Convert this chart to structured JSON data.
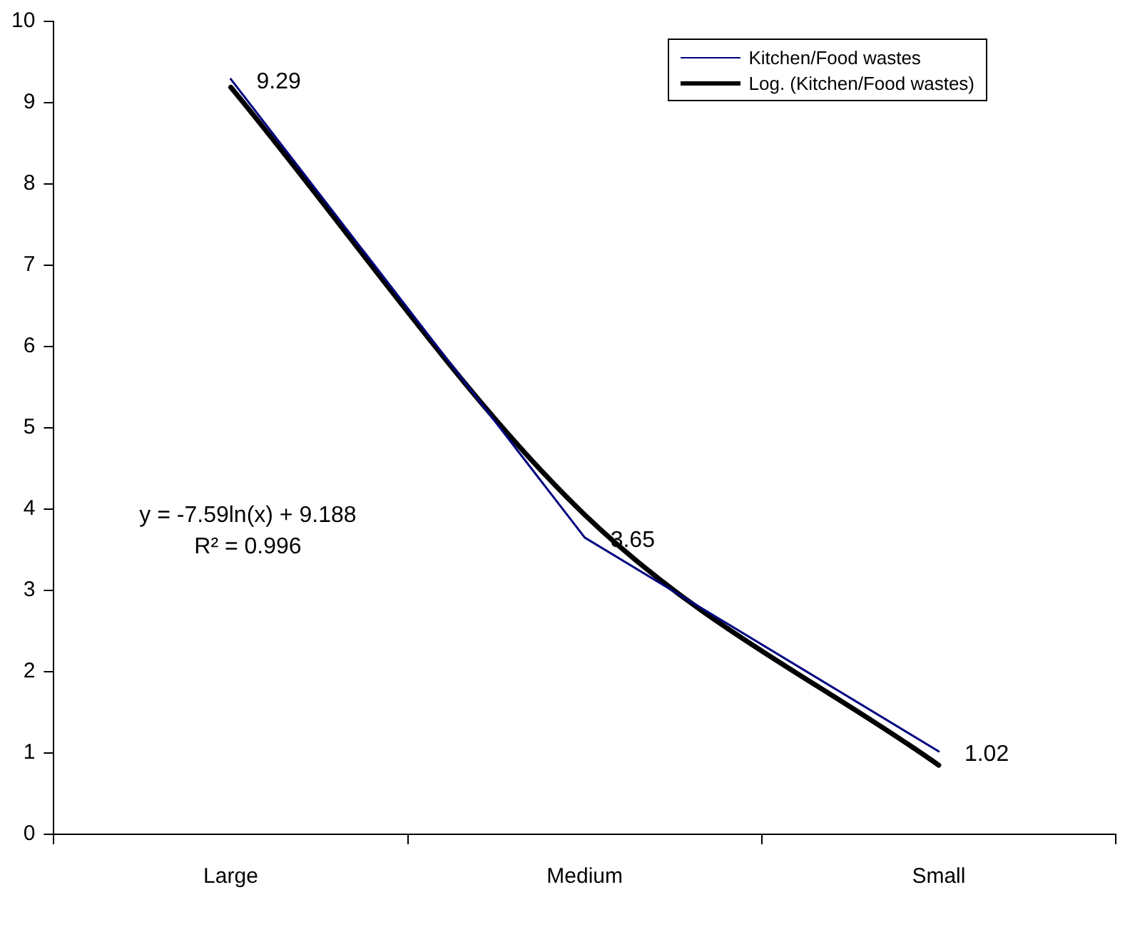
{
  "chart_data": {
    "type": "line",
    "categories": [
      "Large",
      "Medium",
      "Small"
    ],
    "series": [
      {
        "name": "Kitchen/Food wastes",
        "color": "#000080",
        "values": [
          9.29,
          3.65,
          1.02
        ],
        "value_labels": [
          "9.29",
          "3.65",
          "1.02"
        ]
      },
      {
        "name": "Log. (Kitchen/Food wastes)",
        "type": "line",
        "color": "#000000",
        "values": [
          9.19,
          3.93,
          0.85
        ]
      }
    ],
    "ylim": [
      0,
      10
    ],
    "yticks": [
      0,
      1,
      2,
      3,
      4,
      5,
      6,
      7,
      8,
      9,
      10
    ],
    "grid": false,
    "legend": "top right",
    "marker": "none",
    "line_style": "solid",
    "annotations": [
      "y = -7.59ln(x)  + 9.188",
      "R² = 0.996"
    ]
  }
}
